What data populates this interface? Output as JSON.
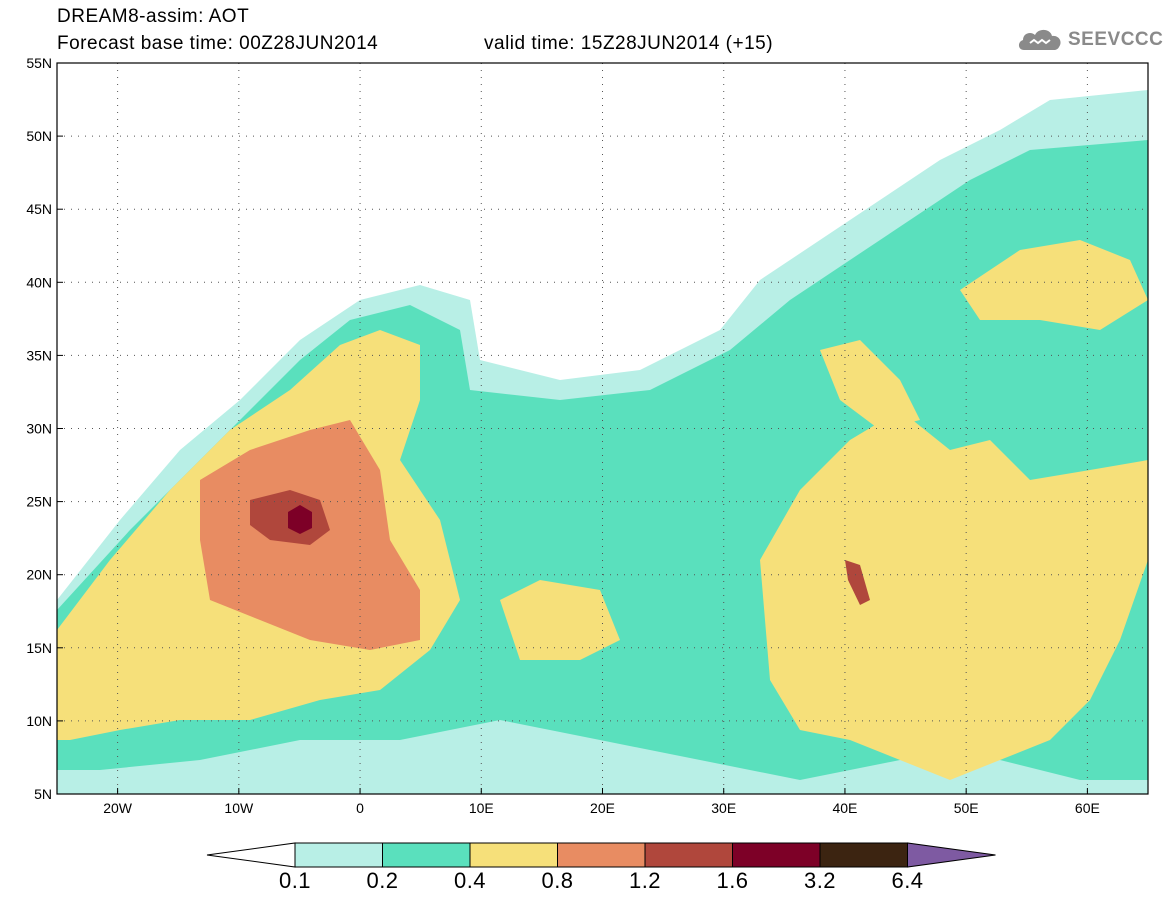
{
  "header": {
    "title_line1": "DREAM8-assim: AOT",
    "title_line2": "Forecast base time: 00Z28JUN2014",
    "valid_time": "valid time: 15Z28JUN2014 (+15)",
    "logo_text": "SEEVCCC"
  },
  "map": {
    "lon_range": [
      -25,
      65
    ],
    "lat_range": [
      5,
      55
    ],
    "x_ticks": [
      "20W",
      "10W",
      "0",
      "10E",
      "20E",
      "30E",
      "40E",
      "50E",
      "60E"
    ],
    "y_ticks": [
      "5N",
      "10N",
      "15N",
      "20N",
      "25N",
      "30N",
      "35N",
      "40N",
      "45N",
      "50N",
      "55N"
    ],
    "grid": "dotted"
  },
  "colorbar": {
    "labels": [
      "0.1",
      "0.2",
      "0.4",
      "0.8",
      "1.2",
      "1.6",
      "3.2",
      "6.4"
    ],
    "colors": [
      "#ffffff",
      "#b8efe6",
      "#5ae0bd",
      "#f6e07a",
      "#e88c62",
      "#b0473c",
      "#7d0027",
      "#3c2411",
      "#7e5aa2"
    ]
  }
}
